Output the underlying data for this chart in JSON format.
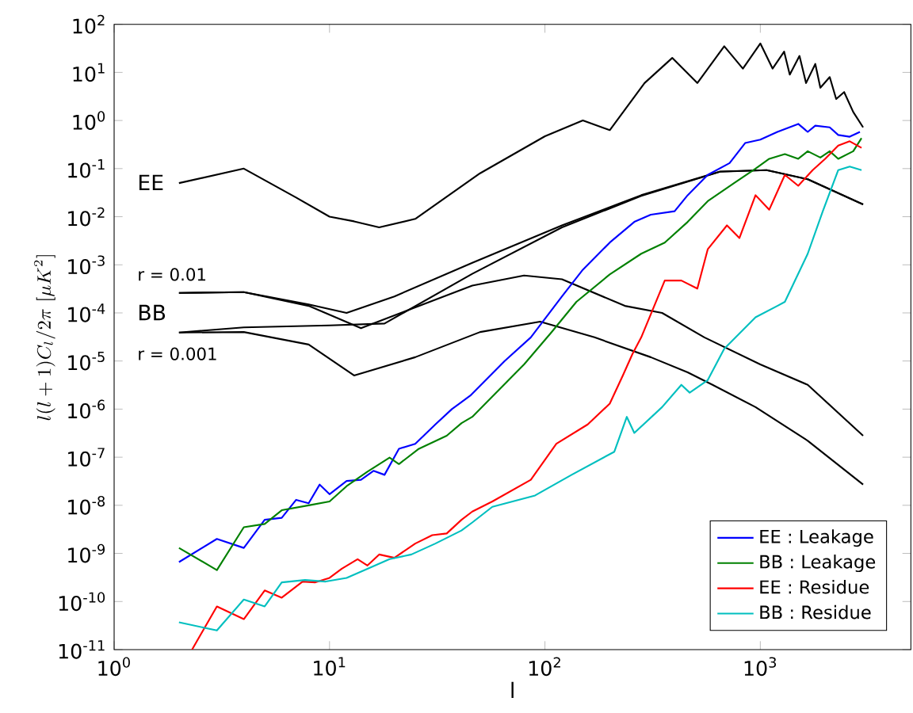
{
  "chart_data": {
    "type": "line",
    "xlabel": "l",
    "ylabel": "l(l+1)C_l/2\\pi\\ [\\mu K^2]",
    "log": "xy",
    "grid": false,
    "legend": "bottom right",
    "marker": "none",
    "line_style": "solid",
    "xlim": [
      1,
      5000
    ],
    "ylim": [
      1e-11,
      100
    ],
    "xticks": [
      {
        "value": 1,
        "label": "10$^{0}$"
      },
      {
        "value": 10,
        "label": "10$^{1}$"
      },
      {
        "value": 100,
        "label": "10$^{2}$"
      },
      {
        "value": 1000,
        "label": "10$^{3}$"
      }
    ],
    "yticks": [
      {
        "value": 1e-11,
        "label": "10$^{-11}$"
      },
      {
        "value": 1e-10,
        "label": "10$^{-10}$"
      },
      {
        "value": 1e-09,
        "label": "10$^{-9}$"
      },
      {
        "value": 1e-08,
        "label": "10$^{-8}$"
      },
      {
        "value": 1e-07,
        "label": "10$^{-7}$"
      },
      {
        "value": 1e-06,
        "label": "10$^{-6}$"
      },
      {
        "value": 1e-05,
        "label": "10$^{-5}$"
      },
      {
        "value": 0.0001,
        "label": "10$^{-4}$"
      },
      {
        "value": 0.001,
        "label": "10$^{-3}$"
      },
      {
        "value": 0.01,
        "label": "10$^{-2}$"
      },
      {
        "value": 0.1,
        "label": "10$^{-1}$"
      },
      {
        "value": 1,
        "label": "10$^{0}$"
      },
      {
        "value": 10,
        "label": "10$^{1}$"
      },
      {
        "value": 100,
        "label": "10$^{2}$"
      }
    ],
    "annotations": [
      "EE",
      "r = 0.01",
      "BB",
      "r = 0.001"
    ],
    "series": [
      {
        "color": "#000000",
        "x": [
          2,
          4,
          7,
          10,
          13,
          17,
          25,
          50,
          100,
          150,
          200,
          290,
          390,
          510,
          680,
          830,
          1000,
          1140,
          1290,
          1370,
          1520,
          1630,
          1800,
          1900,
          2100,
          2250,
          2450,
          2700,
          3000
        ],
        "values": [
          0.05,
          0.1,
          0.025,
          0.01,
          0.008,
          0.006,
          0.009,
          0.08,
          0.47,
          1.0,
          0.63,
          6,
          20,
          6,
          35,
          12,
          40,
          12,
          27,
          9,
          22,
          6,
          15,
          4.8,
          8,
          2.8,
          3.9,
          1.5,
          0.72
        ]
      },
      {
        "color": "#000000",
        "x": [
          2,
          4,
          8,
          12,
          20,
          46,
          120,
          280,
          650,
          1070,
          1660,
          3000
        ],
        "values": [
          0.00026,
          0.00027,
          0.00015,
          0.0001,
          0.00022,
          0.0011,
          0.0066,
          0.028,
          0.087,
          0.093,
          0.06,
          0.018
        ]
      },
      {
        "color": "#000000",
        "x": [
          2,
          4,
          10,
          18,
          46,
          120,
          280,
          650,
          1070,
          1660,
          3000
        ],
        "values": [
          3.9e-05,
          5e-05,
          5.5e-05,
          6e-05,
          0.00065,
          0.006,
          0.027,
          0.086,
          0.093,
          0.06,
          0.018
        ]
      },
      {
        "color": "#000000",
        "x": [
          2,
          4,
          8,
          14,
          25,
          46,
          80,
          120,
          235,
          350,
          550,
          1000,
          1660,
          3000
        ],
        "values": [
          0.00026,
          0.00027,
          0.00014,
          4.8e-05,
          0.00013,
          0.00037,
          0.0006,
          0.0005,
          0.00014,
          0.0001,
          3.1e-05,
          8.5e-06,
          3.2e-06,
          2.8e-07
        ]
      },
      {
        "color": "#000000",
        "x": [
          2,
          4,
          8,
          13,
          25,
          50,
          95,
          170,
          310,
          460,
          600,
          950,
          1660,
          3000
        ],
        "values": [
          3.9e-05,
          4e-05,
          2.2e-05,
          5e-06,
          1.2e-05,
          4e-05,
          6.6e-05,
          3.1e-05,
          1.2e-05,
          5.8e-06,
          3.2e-06,
          1.1e-06,
          2.2e-07,
          2.7e-08
        ]
      },
      {
        "name": "EE : Leakage",
        "color": "#0000ff",
        "x": [
          2,
          3,
          4,
          5,
          6,
          7,
          8,
          9,
          10,
          12,
          14,
          16,
          18,
          21,
          25,
          31,
          37,
          45,
          65,
          86,
          120,
          150,
          200,
          260,
          310,
          400,
          460,
          570,
          720,
          850,
          1000,
          1200,
          1500,
          1660,
          1800,
          2100,
          2300,
          2600,
          2900
        ],
        "values": [
          6.6e-10,
          2e-09,
          1.3e-09,
          5e-09,
          5.5e-09,
          1.3e-08,
          1.1e-08,
          2.7e-08,
          1.7e-08,
          3.2e-08,
          3.4e-08,
          5.2e-08,
          4.3e-08,
          1.5e-07,
          1.9e-07,
          4.8e-07,
          1e-06,
          1.9e-06,
          1e-05,
          3.1e-05,
          0.00022,
          0.00079,
          0.0029,
          0.0078,
          0.011,
          0.013,
          0.028,
          0.074,
          0.13,
          0.34,
          0.4,
          0.58,
          0.85,
          0.58,
          0.78,
          0.72,
          0.5,
          0.46,
          0.58
        ]
      },
      {
        "name": "BB : Leakage",
        "color": "#008000",
        "x": [
          2,
          3,
          4,
          5,
          6,
          8,
          10,
          12,
          15,
          19,
          21,
          26,
          35,
          41,
          46,
          80,
          107,
          140,
          200,
          280,
          360,
          460,
          570,
          760,
          950,
          1100,
          1300,
          1500,
          1660,
          1900,
          2100,
          2300,
          2700,
          2950
        ],
        "values": [
          1.3e-09,
          4.5e-10,
          3.5e-09,
          4.1e-09,
          7.9e-09,
          1e-08,
          1.2e-08,
          2.5e-08,
          5e-08,
          9.8e-08,
          7.2e-08,
          1.5e-07,
          2.8e-07,
          5.1e-07,
          6.9e-07,
          8.5e-06,
          3.9e-05,
          0.00017,
          0.00063,
          0.0017,
          0.0029,
          0.0078,
          0.021,
          0.051,
          0.1,
          0.16,
          0.2,
          0.16,
          0.23,
          0.17,
          0.23,
          0.16,
          0.23,
          0.43
        ]
      },
      {
        "name": "EE : Residue",
        "color": "#ff0000",
        "x": [
          2.3,
          3,
          4,
          5,
          6,
          7.5,
          8.6,
          10,
          11.4,
          13.5,
          15,
          17,
          20,
          25,
          30,
          35,
          41,
          46,
          57,
          86,
          113,
          158,
          200,
          230,
          255,
          280,
          360,
          430,
          510,
          570,
          700,
          800,
          950,
          1100,
          1300,
          1500,
          1750,
          2000,
          2300,
          2600,
          2950
        ],
        "values": [
          1e-11,
          7.9e-11,
          4.3e-11,
          1.7e-10,
          1.2e-10,
          2.6e-10,
          2.5e-10,
          3.1e-10,
          4.8e-10,
          7.6e-10,
          5.6e-10,
          9.5e-10,
          8.1e-10,
          1.6e-09,
          2.4e-09,
          2.6e-09,
          5e-09,
          7.4e-09,
          1.2e-08,
          3.4e-08,
          1.9e-07,
          4.8e-07,
          1.3e-06,
          5e-06,
          1.4e-05,
          3.1e-05,
          0.00047,
          0.00047,
          0.00032,
          0.0021,
          0.0066,
          0.0036,
          0.028,
          0.014,
          0.074,
          0.044,
          0.093,
          0.16,
          0.3,
          0.37,
          0.27
        ]
      },
      {
        "name": "BB : Residue",
        "color": "#00bfbf",
        "x": [
          2,
          3,
          4,
          5,
          6,
          7.7,
          9.6,
          12,
          15,
          19,
          24,
          31,
          41,
          46,
          57,
          90,
          133,
          210,
          240,
          260,
          350,
          430,
          470,
          570,
          680,
          950,
          1200,
          1300,
          1660,
          1950,
          2300,
          2600,
          2950
        ],
        "values": [
          3.7e-11,
          2.5e-11,
          1.1e-10,
          7.9e-11,
          2.5e-10,
          2.8e-10,
          2.6e-10,
          3.1e-10,
          4.8e-10,
          7.6e-10,
          9.5e-10,
          1.6e-09,
          3e-09,
          4.4e-09,
          9.3e-09,
          1.6e-08,
          4.3e-08,
          1.3e-07,
          6.9e-07,
          3.2e-07,
          1.1e-06,
          3.2e-06,
          2.2e-06,
          4e-06,
          1.8e-05,
          8.1e-05,
          0.00014,
          0.00017,
          0.0017,
          0.013,
          0.093,
          0.11,
          0.093
        ]
      }
    ]
  }
}
